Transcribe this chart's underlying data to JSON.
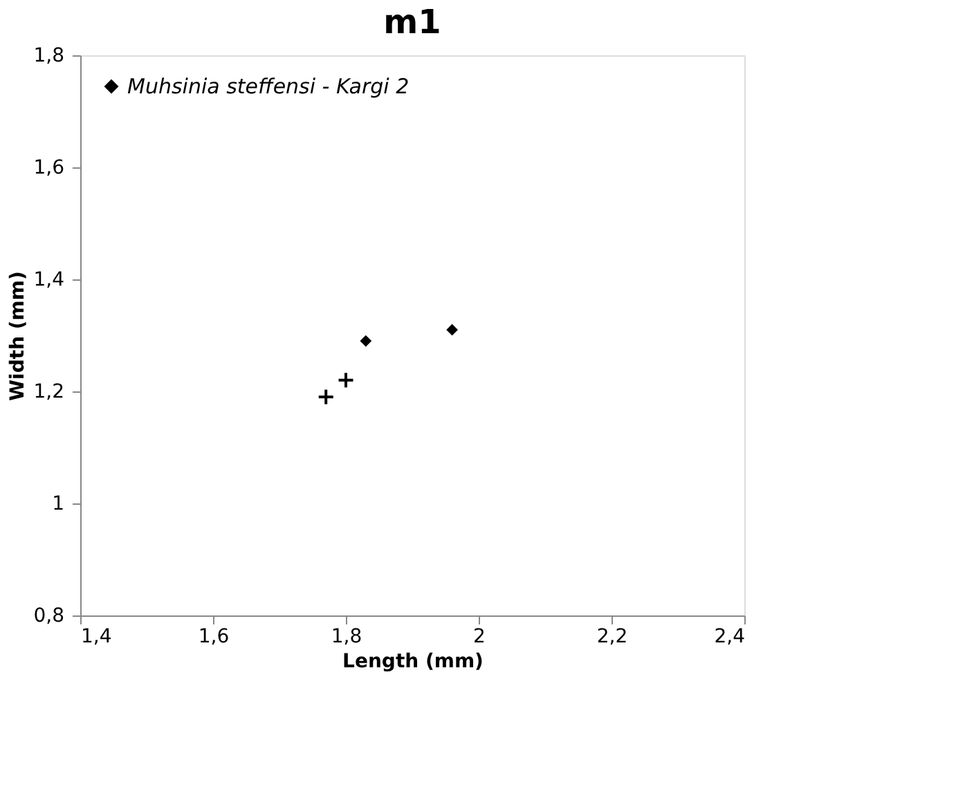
{
  "chart_data": {
    "type": "scatter",
    "title": "m1",
    "xlabel": "Length (mm)",
    "ylabel": "Width (mm)",
    "xlim": [
      1.4,
      2.4
    ],
    "xticks": [
      {
        "value": 1.4,
        "label": "1,4"
      },
      {
        "value": 1.6,
        "label": "1,6"
      },
      {
        "value": 1.8,
        "label": "1,8"
      },
      {
        "value": 2,
        "label": "2"
      },
      {
        "value": 2.2,
        "label": "2,2"
      },
      {
        "value": 2.4,
        "label": "2,4"
      }
    ],
    "ylim": [
      0.8,
      1.8
    ],
    "yticks": [
      {
        "value": 0.8,
        "label": "0,8"
      },
      {
        "value": 1,
        "label": "1"
      },
      {
        "value": 1.2,
        "label": "1,2"
      },
      {
        "value": 1.4,
        "label": "1,4"
      },
      {
        "value": 1.6,
        "label": "1,6"
      },
      {
        "value": 1.8,
        "label": "1,8"
      }
    ],
    "grid": false,
    "legend": "top left",
    "series": [
      {
        "name": "Muhsinia steffensi - Kargi 2",
        "color": "#000000",
        "marker": "diamond",
        "x": [
          1.83,
          1.96
        ],
        "values": [
          1.29,
          1.31
        ]
      },
      {
        "color": "#000000",
        "marker": "cross",
        "x": [
          1.77,
          1.8
        ],
        "values": [
          1.19,
          1.22
        ]
      }
    ]
  }
}
